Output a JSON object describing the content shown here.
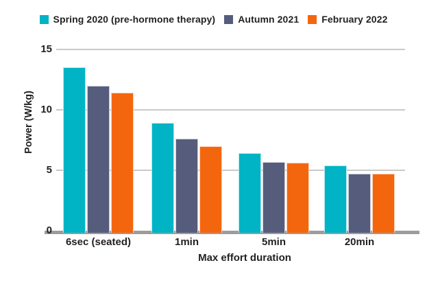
{
  "chart_data": {
    "type": "bar",
    "title": "",
    "xlabel": "Max effort duration",
    "ylabel": "Power (W/kg)",
    "ylim": [
      0,
      15
    ],
    "yticks": [
      0,
      5,
      10,
      15
    ],
    "grid": true,
    "legend_position": "top",
    "categories": [
      "6sec (seated)",
      "1min",
      "5min",
      "20min"
    ],
    "series": [
      {
        "name": "Spring 2020 (pre-hormone therapy)",
        "color": "#00b3c5",
        "values": [
          13.5,
          8.9,
          6.4,
          5.4
        ]
      },
      {
        "name": "Autumn 2021",
        "color": "#565d7c",
        "values": [
          12.0,
          7.6,
          5.7,
          4.7
        ]
      },
      {
        "name": "February 2022",
        "color": "#f4660e",
        "values": [
          11.4,
          7.0,
          5.6,
          4.7
        ]
      }
    ],
    "colors": {
      "text": "#231f20",
      "gridline": "#c9c9c9",
      "baseline": "#9c9c9c",
      "background": "#ffffff"
    }
  }
}
